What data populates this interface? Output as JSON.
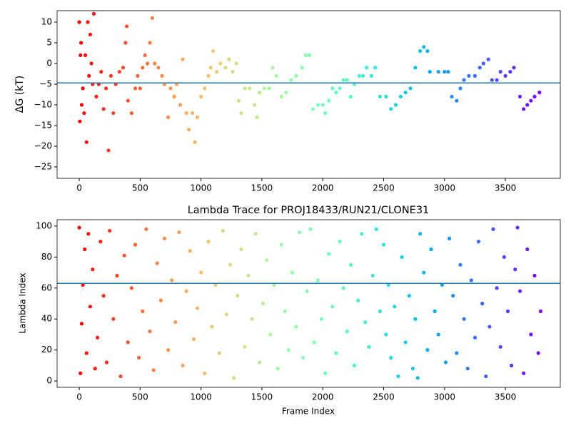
{
  "chart_data": [
    {
      "type": "scatter",
      "ylabel": "ΔG (kT)",
      "x": [
        0,
        5,
        10,
        15,
        20,
        30,
        40,
        50,
        60,
        70,
        80,
        90,
        100,
        110,
        120,
        140,
        160,
        180,
        200,
        220,
        240,
        260,
        280,
        300,
        330,
        360,
        380,
        390,
        400,
        430,
        460,
        480,
        500,
        520,
        540,
        560,
        580,
        600,
        620,
        650,
        680,
        700,
        730,
        750,
        780,
        800,
        830,
        850,
        880,
        900,
        930,
        950,
        970,
        1000,
        1030,
        1060,
        1080,
        1100,
        1130,
        1160,
        1200,
        1230,
        1260,
        1290,
        1310,
        1330,
        1360,
        1400,
        1440,
        1460,
        1480,
        1520,
        1560,
        1590,
        1620,
        1660,
        1700,
        1740,
        1780,
        1830,
        1860,
        1890,
        1920,
        1960,
        2000,
        2020,
        2050,
        2080,
        2110,
        2140,
        2170,
        2200,
        2230,
        2260,
        2300,
        2330,
        2360,
        2400,
        2430,
        2470,
        2520,
        2560,
        2600,
        2640,
        2680,
        2720,
        2760,
        2800,
        2830,
        2860,
        2880,
        2950,
        3000,
        3030,
        3060,
        3100,
        3130,
        3160,
        3200,
        3250,
        3290,
        3320,
        3360,
        3390,
        3430,
        3460,
        3500,
        3540,
        3570,
        3620,
        3650,
        3680,
        3710,
        3740,
        3780
      ],
      "values": [
        10,
        -14,
        2,
        5,
        -10,
        -6,
        -12,
        2,
        -19,
        10,
        -3,
        7,
        0,
        -5,
        12,
        -8,
        -5,
        -2,
        -11,
        -6,
        -21,
        -3,
        -12,
        -5,
        -2,
        -1,
        5,
        9,
        -9,
        -12,
        -6,
        -3,
        -6,
        -1,
        2,
        0,
        5,
        11,
        0,
        -1,
        -3,
        -5,
        -13,
        -6,
        -8,
        -5,
        -10,
        1,
        -12,
        -16,
        -12,
        -19,
        -13,
        -8,
        -6,
        -3,
        -1,
        3,
        -2,
        0,
        -1,
        1,
        -2,
        0,
        -9,
        -12,
        -6,
        -6,
        -10,
        -13,
        -7,
        -6,
        -6,
        -1,
        -3,
        -8,
        -7,
        -4,
        -3,
        -1,
        2,
        2,
        -11,
        -10,
        -10,
        -12,
        -9,
        -6,
        -7,
        -6,
        -4,
        -4,
        -8,
        -5,
        -3,
        -3,
        -1,
        -3,
        -1,
        -8,
        -8,
        -11,
        -10,
        -8,
        -7,
        -6,
        -1,
        3,
        4,
        3,
        -2,
        -2,
        -2,
        -2,
        -8,
        -9,
        -6,
        -4,
        -3,
        -3,
        -1,
        0,
        1,
        -4,
        -4,
        -2,
        -3,
        -2,
        -1,
        -8,
        -11,
        -10,
        -9,
        -8,
        -7
      ],
      "colormap": "rainbow_r",
      "hline": -4.7,
      "hline_color": "#1f77b4",
      "xlim": [
        -182,
        3951
      ],
      "xticks": [
        0,
        500,
        1000,
        1500,
        2000,
        2500,
        3000,
        3500
      ],
      "ylim": [
        -27.76,
        12.76
      ],
      "yticks": [
        {
          "value": -25,
          "label": "−25"
        },
        {
          "value": -20,
          "label": "−20"
        },
        {
          "value": -15,
          "label": "−15"
        },
        {
          "value": -10,
          "label": "−10"
        },
        {
          "value": -5,
          "label": "−5"
        },
        0,
        5,
        10
      ]
    },
    {
      "type": "scatter",
      "title": "Lambda Trace for PROJ18433/RUN21/CLONE31",
      "xlabel": "Frame Index",
      "ylabel": "Lambda Index",
      "x": [
        0,
        10,
        20,
        30,
        45,
        60,
        75,
        90,
        110,
        130,
        150,
        175,
        200,
        225,
        250,
        280,
        310,
        340,
        370,
        400,
        430,
        460,
        490,
        520,
        550,
        580,
        610,
        640,
        670,
        700,
        730,
        760,
        790,
        820,
        850,
        880,
        910,
        940,
        970,
        1000,
        1030,
        1060,
        1090,
        1120,
        1150,
        1180,
        1210,
        1240,
        1270,
        1300,
        1330,
        1360,
        1390,
        1420,
        1450,
        1480,
        1510,
        1540,
        1570,
        1600,
        1630,
        1660,
        1690,
        1720,
        1750,
        1780,
        1810,
        1840,
        1870,
        1900,
        1930,
        1960,
        1990,
        2020,
        2050,
        2080,
        2110,
        2140,
        2170,
        2200,
        2230,
        2260,
        2290,
        2320,
        2350,
        2380,
        2410,
        2440,
        2470,
        2500,
        2520,
        2540,
        2560,
        2590,
        2620,
        2650,
        2680,
        2710,
        2740,
        2760,
        2780,
        2800,
        2830,
        2860,
        2890,
        2920,
        2950,
        2980,
        3010,
        3040,
        3070,
        3100,
        3130,
        3160,
        3190,
        3220,
        3250,
        3280,
        3310,
        3340,
        3370,
        3400,
        3430,
        3460,
        3490,
        3520,
        3550,
        3580,
        3600,
        3620,
        3650,
        3680,
        3710,
        3740,
        3770,
        3790
      ],
      "values": [
        99,
        5,
        37,
        62,
        85,
        18,
        95,
        48,
        72,
        8,
        28,
        90,
        55,
        12,
        97,
        40,
        68,
        3,
        81,
        25,
        60,
        88,
        15,
        45,
        98,
        32,
        7,
        76,
        52,
        92,
        20,
        65,
        38,
        96,
        10,
        58,
        84,
        27,
        47,
        70,
        5,
        90,
        35,
        62,
        18,
        97,
        43,
        75,
        2,
        55,
        85,
        22,
        68,
        40,
        95,
        12,
        50,
        78,
        30,
        62,
        8,
        88,
        45,
        20,
        70,
        35,
        96,
        15,
        58,
        98,
        25,
        65,
        40,
        5,
        82,
        48,
        18,
        90,
        60,
        32,
        75,
        10,
        52,
        95,
        38,
        22,
        68,
        98,
        45,
        88,
        30,
        62,
        15,
        48,
        3,
        80,
        25,
        55,
        8,
        40,
        2,
        95,
        70,
        20,
        85,
        45,
        30,
        62,
        12,
        92,
        55,
        18,
        75,
        40,
        8,
        65,
        28,
        90,
        50,
        3,
        35,
        98,
        60,
        22,
        80,
        45,
        10,
        72,
        99,
        58,
        5,
        85,
        30,
        68,
        18,
        45
      ],
      "colormap": "rainbow_r",
      "hline": 63,
      "hline_color": "#1f77b4",
      "xlim": [
        -182,
        3951
      ],
      "xticks": [
        0,
        500,
        1000,
        1500,
        2000,
        2500,
        3000,
        3500
      ],
      "ylim": [
        -4.1,
        104.1
      ],
      "yticks": [
        0,
        20,
        40,
        60,
        80,
        100
      ]
    }
  ]
}
